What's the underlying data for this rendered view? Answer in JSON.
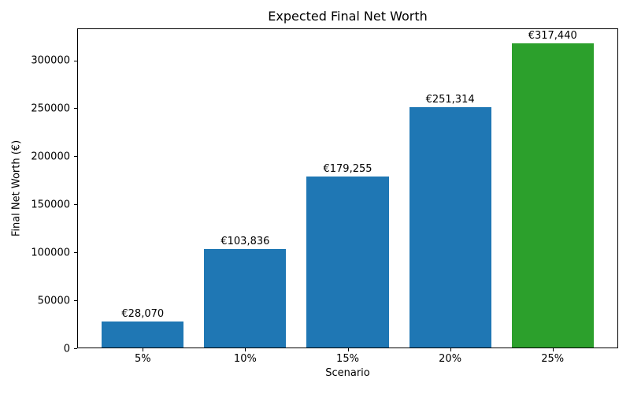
{
  "figure": {
    "background_color": "#ffffff",
    "axis_color": "#000000",
    "text_color": "#000000"
  },
  "chart_data": {
    "type": "bar",
    "title": "Expected Final Net Worth",
    "xlabel": "Scenario",
    "ylabel": "Final Net Worth (€)",
    "categories": [
      "5%",
      "10%",
      "15%",
      "20%",
      "25%"
    ],
    "values": [
      28070,
      103836,
      179255,
      251314,
      317440
    ],
    "bar_labels": [
      "€28,070",
      "€103,836",
      "€179,255",
      "€251,314",
      "€317,440"
    ],
    "bar_colors": [
      "#1f77b4",
      "#1f77b4",
      "#1f77b4",
      "#1f77b4",
      "#2ca02c"
    ],
    "yticks": [
      0,
      50000,
      100000,
      150000,
      200000,
      250000,
      300000
    ],
    "ylim": [
      0,
      333312
    ],
    "xlim_units": [
      -0.64,
      4.64
    ],
    "bar_width_units": 0.8,
    "grid": false,
    "legend": "none"
  }
}
